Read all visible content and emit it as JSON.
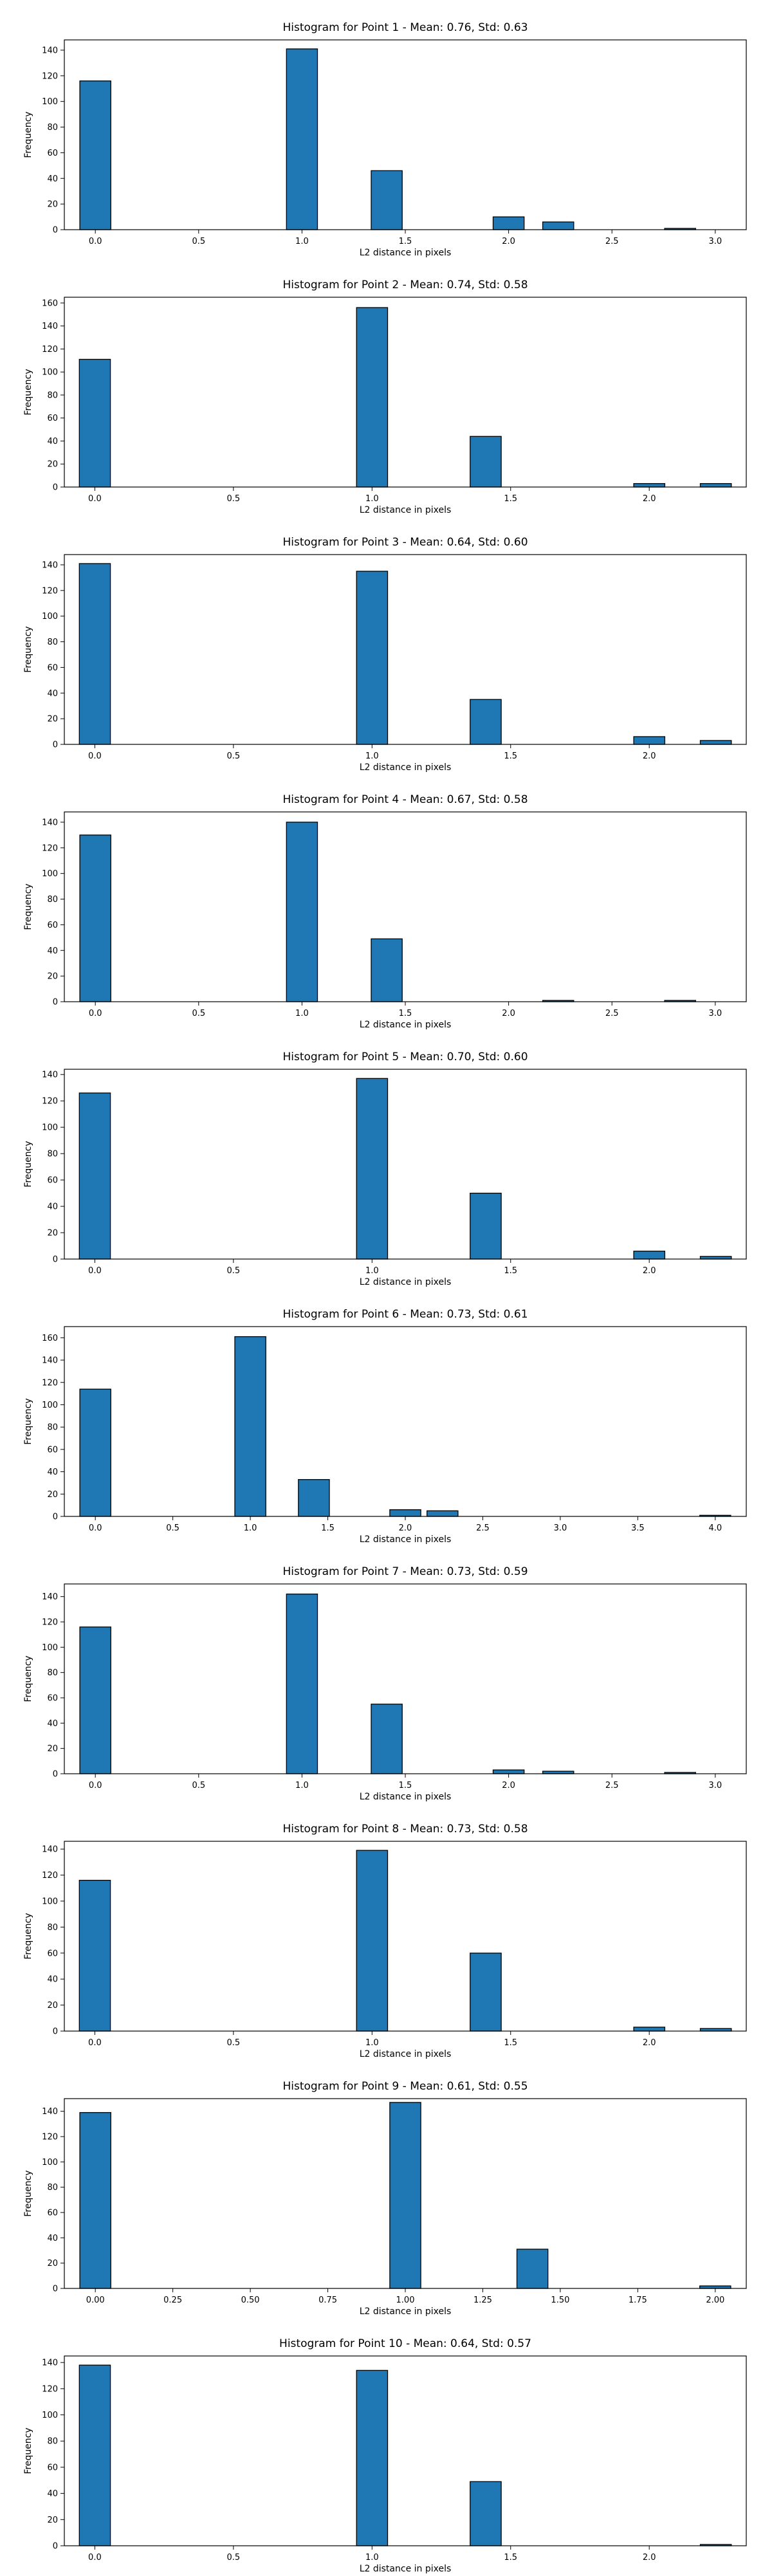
{
  "chart_data": [
    {
      "type": "bar",
      "title": "Histogram for Point 1 - Mean: 0.76, Std: 0.63",
      "xlabel": "L2 distance in pixels",
      "ylabel": "Frequency",
      "xlim": [
        -0.15,
        3.15
      ],
      "ylim": [
        0,
        148
      ],
      "xticks": [
        "0.0",
        "0.5",
        "1.0",
        "1.5",
        "2.0",
        "2.5",
        "3.0"
      ],
      "yticks": [
        "0",
        "20",
        "40",
        "60",
        "80",
        "100",
        "120",
        "140"
      ],
      "bin_width": 0.15,
      "bars": [
        {
          "x": 0.0,
          "value": 116
        },
        {
          "x": 1.0,
          "value": 141
        },
        {
          "x": 1.41,
          "value": 46
        },
        {
          "x": 2.0,
          "value": 10
        },
        {
          "x": 2.24,
          "value": 6
        },
        {
          "x": 2.83,
          "value": 1
        }
      ]
    },
    {
      "type": "bar",
      "title": "Histogram for Point 2 - Mean: 0.74, Std: 0.58",
      "xlabel": "L2 distance in pixels",
      "ylabel": "Frequency",
      "xlim": [
        -0.11,
        2.35
      ],
      "ylim": [
        0,
        165
      ],
      "xticks": [
        "0.0",
        "0.5",
        "1.0",
        "1.5",
        "2.0"
      ],
      "yticks": [
        "0",
        "20",
        "40",
        "60",
        "80",
        "100",
        "120",
        "140",
        "160"
      ],
      "bin_width": 0.112,
      "bars": [
        {
          "x": 0.0,
          "value": 111
        },
        {
          "x": 1.0,
          "value": 156
        },
        {
          "x": 1.41,
          "value": 44
        },
        {
          "x": 2.0,
          "value": 3
        },
        {
          "x": 2.24,
          "value": 3
        }
      ]
    },
    {
      "type": "bar",
      "title": "Histogram for Point 3 - Mean: 0.64, Std: 0.60",
      "xlabel": "L2 distance in pixels",
      "ylabel": "Frequency",
      "xlim": [
        -0.11,
        2.35
      ],
      "ylim": [
        0,
        148
      ],
      "xticks": [
        "0.0",
        "0.5",
        "1.0",
        "1.5",
        "2.0"
      ],
      "yticks": [
        "0",
        "20",
        "40",
        "60",
        "80",
        "100",
        "120",
        "140"
      ],
      "bin_width": 0.112,
      "bars": [
        {
          "x": 0.0,
          "value": 141
        },
        {
          "x": 1.0,
          "value": 135
        },
        {
          "x": 1.41,
          "value": 35
        },
        {
          "x": 2.0,
          "value": 6
        },
        {
          "x": 2.24,
          "value": 3
        }
      ]
    },
    {
      "type": "bar",
      "title": "Histogram for Point 4 - Mean: 0.67, Std: 0.58",
      "xlabel": "L2 distance in pixels",
      "ylabel": "Frequency",
      "xlim": [
        -0.15,
        3.15
      ],
      "ylim": [
        0,
        148
      ],
      "xticks": [
        "0.0",
        "0.5",
        "1.0",
        "1.5",
        "2.0",
        "2.5",
        "3.0"
      ],
      "yticks": [
        "0",
        "20",
        "40",
        "60",
        "80",
        "100",
        "120",
        "140"
      ],
      "bin_width": 0.15,
      "bars": [
        {
          "x": 0.0,
          "value": 130
        },
        {
          "x": 1.0,
          "value": 140
        },
        {
          "x": 1.41,
          "value": 49
        },
        {
          "x": 2.24,
          "value": 1
        },
        {
          "x": 2.83,
          "value": 1
        }
      ]
    },
    {
      "type": "bar",
      "title": "Histogram for Point 5 - Mean: 0.70, Std: 0.60",
      "xlabel": "L2 distance in pixels",
      "ylabel": "Frequency",
      "xlim": [
        -0.11,
        2.35
      ],
      "ylim": [
        0,
        144
      ],
      "xticks": [
        "0.0",
        "0.5",
        "1.0",
        "1.5",
        "2.0"
      ],
      "yticks": [
        "0",
        "20",
        "40",
        "60",
        "80",
        "100",
        "120",
        "140"
      ],
      "bin_width": 0.112,
      "bars": [
        {
          "x": 0.0,
          "value": 126
        },
        {
          "x": 1.0,
          "value": 137
        },
        {
          "x": 1.41,
          "value": 50
        },
        {
          "x": 2.0,
          "value": 6
        },
        {
          "x": 2.24,
          "value": 2
        }
      ]
    },
    {
      "type": "bar",
      "title": "Histogram for Point 6 - Mean: 0.73, Std: 0.61",
      "xlabel": "L2 distance in pixels",
      "ylabel": "Frequency",
      "xlim": [
        -0.2,
        4.2
      ],
      "ylim": [
        0,
        170
      ],
      "xticks": [
        "0.0",
        "0.5",
        "1.0",
        "1.5",
        "2.0",
        "2.5",
        "3.0",
        "3.5",
        "4.0"
      ],
      "yticks": [
        "0",
        "20",
        "40",
        "60",
        "80",
        "100",
        "120",
        "140",
        "160"
      ],
      "bin_width": 0.2,
      "bars": [
        {
          "x": 0.0,
          "value": 114
        },
        {
          "x": 1.0,
          "value": 161
        },
        {
          "x": 1.41,
          "value": 33
        },
        {
          "x": 2.0,
          "value": 6
        },
        {
          "x": 2.24,
          "value": 5
        },
        {
          "x": 4.0,
          "value": 1
        }
      ]
    },
    {
      "type": "bar",
      "title": "Histogram for Point 7 - Mean: 0.73, Std: 0.59",
      "xlabel": "L2 distance in pixels",
      "ylabel": "Frequency",
      "xlim": [
        -0.15,
        3.15
      ],
      "ylim": [
        0,
        150
      ],
      "xticks": [
        "0.0",
        "0.5",
        "1.0",
        "1.5",
        "2.0",
        "2.5",
        "3.0"
      ],
      "yticks": [
        "0",
        "20",
        "40",
        "60",
        "80",
        "100",
        "120",
        "140"
      ],
      "bin_width": 0.15,
      "bars": [
        {
          "x": 0.0,
          "value": 116
        },
        {
          "x": 1.0,
          "value": 142
        },
        {
          "x": 1.41,
          "value": 55
        },
        {
          "x": 2.0,
          "value": 3
        },
        {
          "x": 2.24,
          "value": 2
        },
        {
          "x": 2.83,
          "value": 1
        }
      ]
    },
    {
      "type": "bar",
      "title": "Histogram for Point 8 - Mean: 0.73, Std: 0.58",
      "xlabel": "L2 distance in pixels",
      "ylabel": "Frequency",
      "xlim": [
        -0.11,
        2.35
      ],
      "ylim": [
        0,
        146
      ],
      "xticks": [
        "0.0",
        "0.5",
        "1.0",
        "1.5",
        "2.0"
      ],
      "yticks": [
        "0",
        "20",
        "40",
        "60",
        "80",
        "100",
        "120",
        "140"
      ],
      "bin_width": 0.112,
      "bars": [
        {
          "x": 0.0,
          "value": 116
        },
        {
          "x": 1.0,
          "value": 139
        },
        {
          "x": 1.41,
          "value": 60
        },
        {
          "x": 2.0,
          "value": 3
        },
        {
          "x": 2.24,
          "value": 2
        }
      ]
    },
    {
      "type": "bar",
      "title": "Histogram for Point 9 - Mean: 0.61, Std: 0.55",
      "xlabel": "L2 distance in pixels",
      "ylabel": "Frequency",
      "xlim": [
        -0.1,
        2.1
      ],
      "ylim": [
        0,
        150
      ],
      "xticks": [
        "0.00",
        "0.25",
        "0.50",
        "0.75",
        "1.00",
        "1.25",
        "1.50",
        "1.75",
        "2.00"
      ],
      "yticks": [
        "0",
        "20",
        "40",
        "60",
        "80",
        "100",
        "120",
        "140"
      ],
      "bin_width": 0.1,
      "bars": [
        {
          "x": 0.0,
          "value": 139
        },
        {
          "x": 1.0,
          "value": 147
        },
        {
          "x": 1.41,
          "value": 31
        },
        {
          "x": 2.0,
          "value": 2
        }
      ]
    },
    {
      "type": "bar",
      "title": "Histogram for Point 10 - Mean: 0.64, Std: 0.57",
      "xlabel": "L2 distance in pixels",
      "ylabel": "Frequency",
      "xlim": [
        -0.11,
        2.35
      ],
      "ylim": [
        0,
        145
      ],
      "xticks": [
        "0.0",
        "0.5",
        "1.0",
        "1.5",
        "2.0"
      ],
      "yticks": [
        "0",
        "20",
        "40",
        "60",
        "80",
        "100",
        "120",
        "140"
      ],
      "bin_width": 0.112,
      "bars": [
        {
          "x": 0.0,
          "value": 138
        },
        {
          "x": 1.0,
          "value": 134
        },
        {
          "x": 1.41,
          "value": 49
        },
        {
          "x": 2.24,
          "value": 1
        }
      ]
    }
  ],
  "colors": {
    "bar_fill": "#1f77b4",
    "bar_edge": "#000000",
    "axes": "#000000",
    "background": "#ffffff"
  }
}
